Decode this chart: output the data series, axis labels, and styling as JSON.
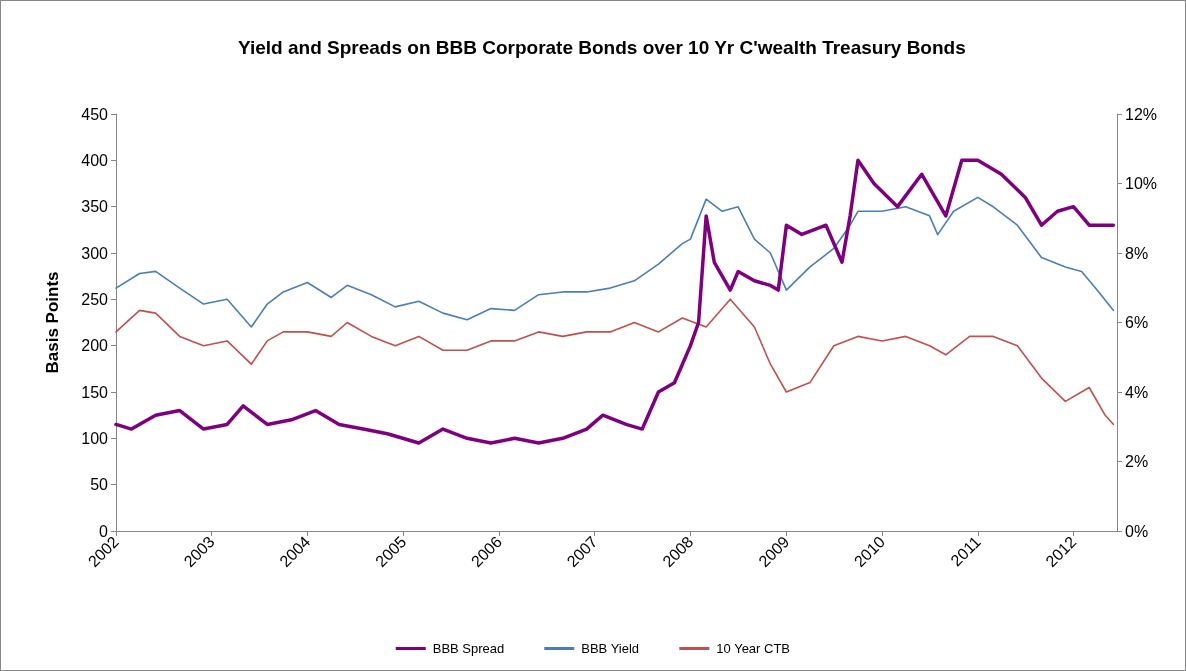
{
  "chart_data": {
    "type": "line",
    "title": "Yield and Spreads on BBB Corporate Bonds over 10 Yr C'wealth Treasury Bonds",
    "ylabel": "Basis Points",
    "xlim": [
      "2002",
      "2012-06-15"
    ],
    "xticks": [
      "2002",
      "2003",
      "2004",
      "2005",
      "2006",
      "2007",
      "2008",
      "2009",
      "2010",
      "2011",
      "2012"
    ],
    "ylim": [
      0,
      450
    ],
    "yticks": [
      0,
      50,
      100,
      150,
      200,
      250,
      300,
      350,
      400,
      450
    ],
    "y2lim": [
      0,
      12
    ],
    "y2ticks": [
      {
        "value": 0,
        "label": "0%"
      },
      {
        "value": 2,
        "label": "2%"
      },
      {
        "value": 4,
        "label": "4%"
      },
      {
        "value": 6,
        "label": "6%"
      },
      {
        "value": 8,
        "label": "8%"
      },
      {
        "value": 10,
        "label": "10%"
      },
      {
        "value": 12,
        "label": "12%"
      }
    ],
    "grid": false,
    "legend": "bottom",
    "marker": "none",
    "line_style": "solid",
    "series": [
      {
        "name": "BBB Spread",
        "color": "#7f007f",
        "x": [
          "2002-01",
          "2002-03",
          "2002-06",
          "2002-09",
          "2002-12",
          "2003-03",
          "2003-05",
          "2003-08",
          "2003-11",
          "2004-02",
          "2004-05",
          "2004-08",
          "2004-11",
          "2005-03",
          "2005-06",
          "2005-09",
          "2005-12",
          "2006-03",
          "2006-06",
          "2006-09",
          "2006-12",
          "2007-02",
          "2007-05",
          "2007-07",
          "2007-09",
          "2007-11",
          "2008-01",
          "2008-02",
          "2008-03",
          "2008-04",
          "2008-06",
          "2008-07",
          "2008-09",
          "2008-11",
          "2008-12",
          "2009-01",
          "2009-03",
          "2009-06",
          "2009-08",
          "2009-09",
          "2009-10",
          "2009-12",
          "2010-03",
          "2010-06",
          "2010-09",
          "2010-11",
          "2011-01",
          "2011-04",
          "2011-07",
          "2011-09",
          "2011-11",
          "2012-01",
          "2012-03",
          "2012-06"
        ],
        "values": [
          115,
          110,
          125,
          130,
          110,
          115,
          135,
          115,
          120,
          130,
          115,
          110,
          105,
          95,
          110,
          100,
          95,
          100,
          95,
          100,
          110,
          125,
          115,
          110,
          150,
          160,
          200,
          225,
          340,
          290,
          260,
          280,
          270,
          265,
          260,
          330,
          320,
          330,
          290,
          340,
          400,
          375,
          350,
          385,
          340,
          400,
          400,
          385,
          360,
          330,
          345,
          350,
          330,
          330
        ]
      },
      {
        "name": "BBB Yield",
        "color": "#4a7ebb",
        "axis": "y2",
        "x": [
          "2002-01",
          "2002-04",
          "2002-06",
          "2002-09",
          "2002-12",
          "2003-03",
          "2003-06",
          "2003-08",
          "2003-10",
          "2004-01",
          "2004-04",
          "2004-06",
          "2004-09",
          "2004-12",
          "2005-03",
          "2005-06",
          "2005-09",
          "2005-12",
          "2006-03",
          "2006-06",
          "2006-09",
          "2006-12",
          "2007-03",
          "2007-06",
          "2007-09",
          "2007-12",
          "2008-01",
          "2008-03",
          "2008-05",
          "2008-07",
          "2008-09",
          "2008-11",
          "2009-01",
          "2009-04",
          "2009-07",
          "2009-09",
          "2009-10",
          "2010-01",
          "2010-04",
          "2010-07",
          "2010-08",
          "2010-10",
          "2011-01",
          "2011-03",
          "2011-06",
          "2011-09",
          "2011-12",
          "2012-02",
          "2012-04",
          "2012-06"
        ],
        "values": [
          6.99,
          7.41,
          7.47,
          6.99,
          6.53,
          6.67,
          5.87,
          6.53,
          6.88,
          7.15,
          6.72,
          7.07,
          6.8,
          6.45,
          6.61,
          6.27,
          6.08,
          6.4,
          6.35,
          6.8,
          6.88,
          6.88,
          6.99,
          7.2,
          7.68,
          8.27,
          8.4,
          9.55,
          9.2,
          9.33,
          8.4,
          8.0,
          6.93,
          7.6,
          8.13,
          8.8,
          9.2,
          9.2,
          9.33,
          9.07,
          8.53,
          9.2,
          9.6,
          9.33,
          8.8,
          7.87,
          7.6,
          7.47,
          6.93,
          6.35
        ]
      },
      {
        "name": "10 Year CTB",
        "color": "#c0504d",
        "axis": "y2",
        "x": [
          "2002-01",
          "2002-04",
          "2002-06",
          "2002-09",
          "2002-12",
          "2003-03",
          "2003-06",
          "2003-08",
          "2003-10",
          "2004-01",
          "2004-04",
          "2004-06",
          "2004-09",
          "2004-12",
          "2005-03",
          "2005-06",
          "2005-09",
          "2005-12",
          "2006-03",
          "2006-06",
          "2006-09",
          "2006-12",
          "2007-03",
          "2007-06",
          "2007-09",
          "2007-12",
          "2008-03",
          "2008-06",
          "2008-09",
          "2008-11",
          "2009-01",
          "2009-04",
          "2009-07",
          "2009-10",
          "2010-01",
          "2010-04",
          "2010-07",
          "2010-09",
          "2010-12",
          "2011-03",
          "2011-06",
          "2011-09",
          "2011-12",
          "2012-03",
          "2012-05",
          "2012-06"
        ],
        "values": [
          5.73,
          6.35,
          6.27,
          5.6,
          5.33,
          5.47,
          4.8,
          5.47,
          5.73,
          5.73,
          5.6,
          6.0,
          5.6,
          5.33,
          5.6,
          5.2,
          5.2,
          5.47,
          5.47,
          5.73,
          5.6,
          5.73,
          5.73,
          6.0,
          5.73,
          6.13,
          5.87,
          6.67,
          5.87,
          4.8,
          4.0,
          4.27,
          5.33,
          5.6,
          5.47,
          5.6,
          5.33,
          5.07,
          5.6,
          5.6,
          5.33,
          4.4,
          3.73,
          4.13,
          3.33,
          3.07
        ]
      }
    ]
  }
}
